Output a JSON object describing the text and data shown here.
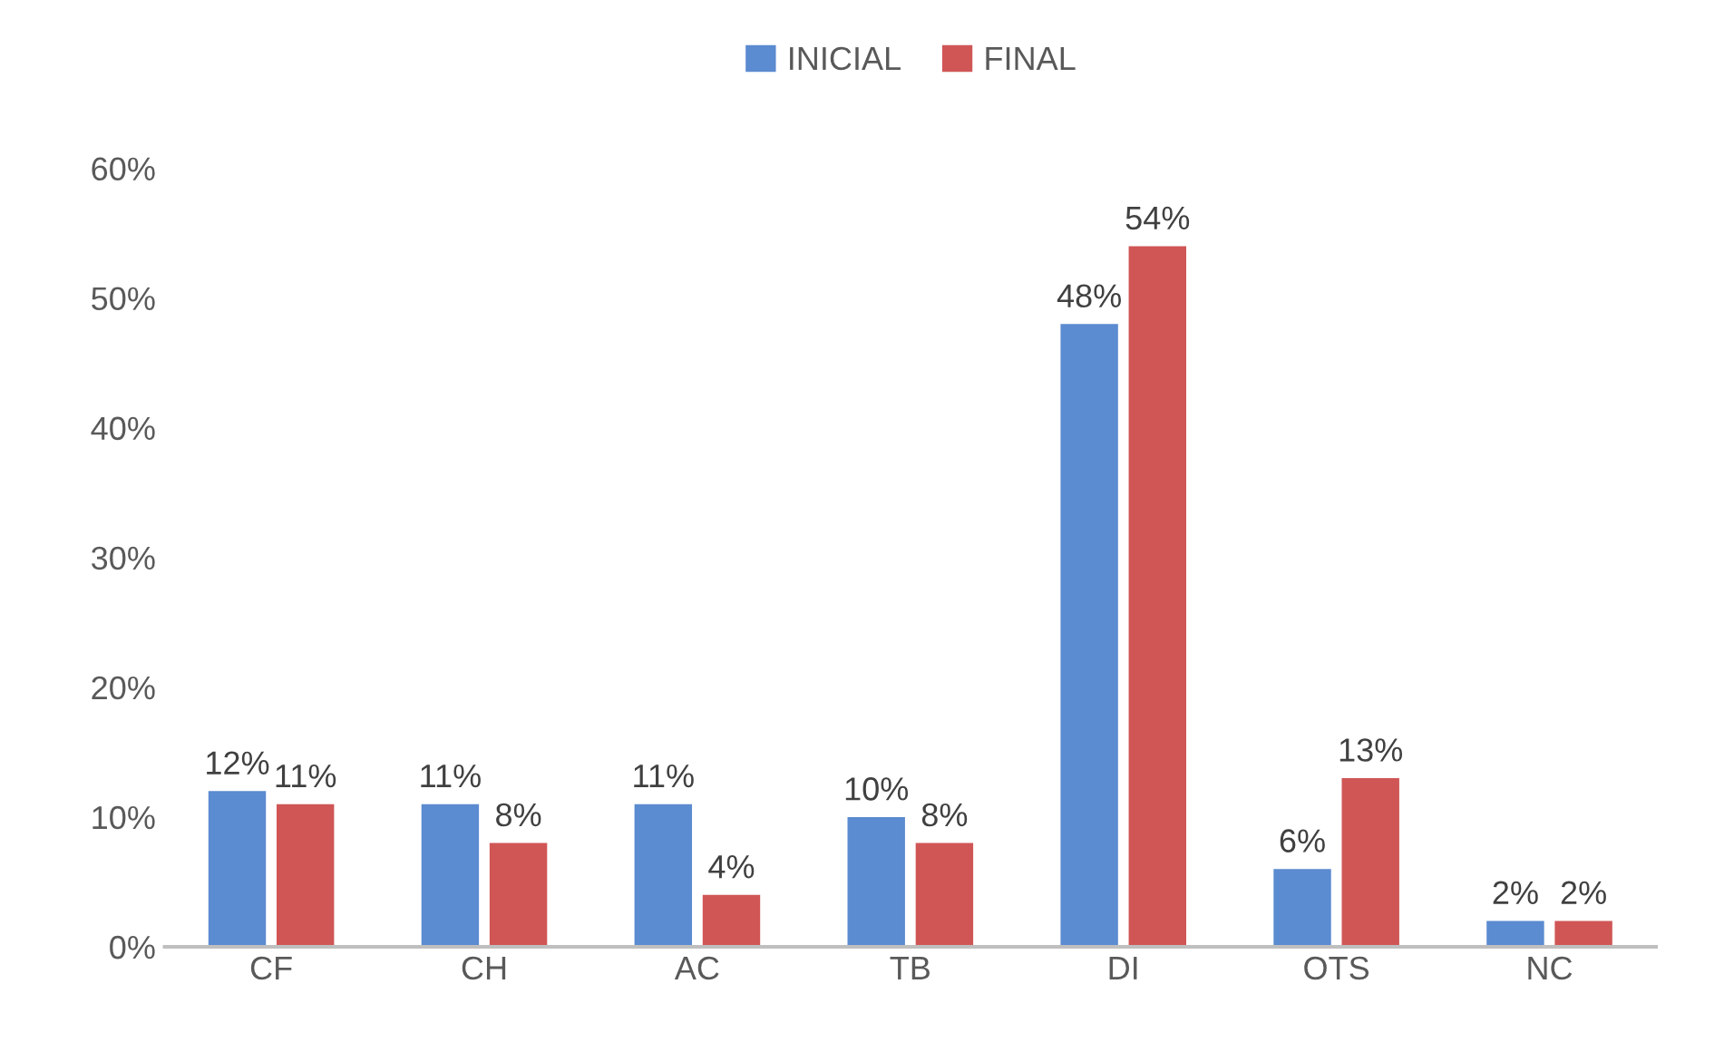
{
  "chart_data": {
    "type": "bar",
    "categories": [
      "CF",
      "CH",
      "AC",
      "TB",
      "DI",
      "OTS",
      "NC"
    ],
    "series": [
      {
        "name": "INICIAL",
        "color": "#5b8bd0",
        "values": [
          12,
          11,
          11,
          10,
          48,
          6,
          2
        ],
        "value_labels": [
          "12%",
          "11%",
          "11%",
          "10%",
          "48%",
          "6%",
          "2%"
        ]
      },
      {
        "name": "FINAL",
        "color": "#d05656",
        "values": [
          11,
          8,
          4,
          8,
          54,
          13,
          2
        ],
        "value_labels": [
          "11%",
          "8%",
          "4%",
          "8%",
          "54%",
          "13%",
          "2%"
        ]
      }
    ],
    "ylim": [
      0,
      60
    ],
    "yticks": [
      {
        "value": 0,
        "label": "0%"
      },
      {
        "value": 10,
        "label": "10%"
      },
      {
        "value": 20,
        "label": "20%"
      },
      {
        "value": 30,
        "label": "30%"
      },
      {
        "value": 40,
        "label": "40%"
      },
      {
        "value": 50,
        "label": "50%"
      },
      {
        "value": 60,
        "label": "60%"
      }
    ],
    "grid": false,
    "legend": "top"
  }
}
